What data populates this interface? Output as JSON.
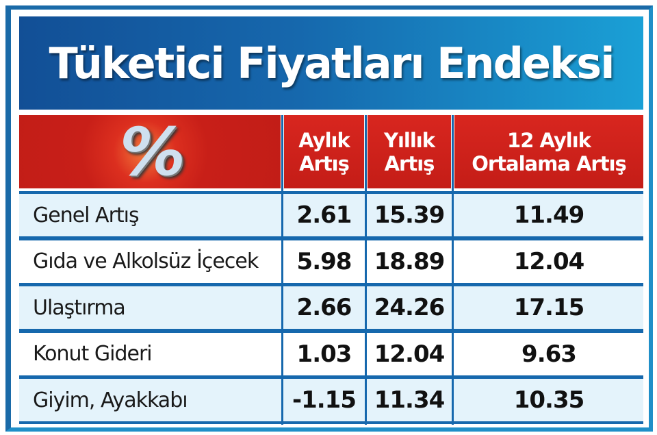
{
  "title": "Tüketici Fiyatları Endeksi",
  "colors": {
    "title_blue": "#1668ad",
    "header_red": "#c41d17",
    "row_alt": "#e4f3fb"
  },
  "header_icon": "percent-money-icon",
  "chart_data": {
    "type": "table",
    "title": "Tüketici Fiyatları Endeksi",
    "columns": [
      "",
      "Aylık Artış",
      "Yıllık Artış",
      "12 Aylık Ortalama Artış"
    ],
    "column_lines": [
      [
        "Aylık",
        "Artış"
      ],
      [
        "Yıllık",
        "Artış"
      ],
      [
        "12 Aylık",
        "Ortalama Artış"
      ]
    ],
    "rows": [
      {
        "label": "Genel Artış",
        "values": [
          "2.61",
          "15.39",
          "11.49"
        ]
      },
      {
        "label": "Gıda ve Alkolsüz İçecek",
        "values": [
          "5.98",
          "18.89",
          "12.04"
        ]
      },
      {
        "label": "Ulaştırma",
        "values": [
          "2.66",
          "24.26",
          "17.15"
        ]
      },
      {
        "label": "Konut Gideri",
        "values": [
          "1.03",
          "12.04",
          "9.63"
        ]
      },
      {
        "label": "Giyim, Ayakkabı",
        "values": [
          "-1.15",
          "11.34",
          "10.35"
        ]
      }
    ]
  }
}
